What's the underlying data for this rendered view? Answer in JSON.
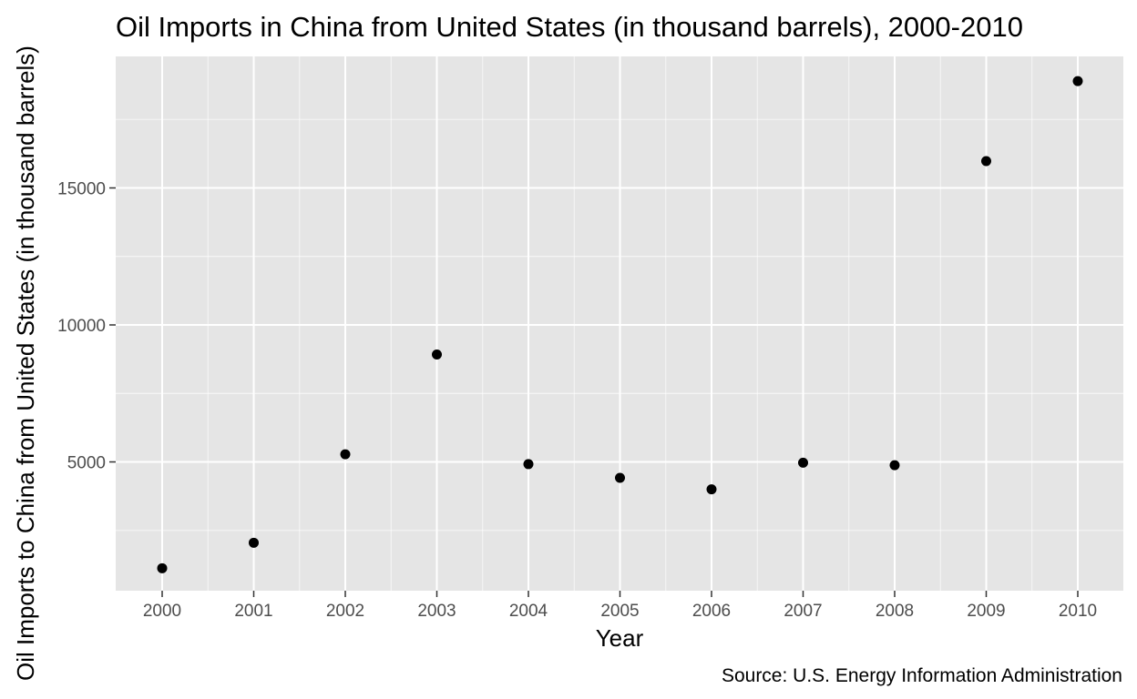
{
  "chart_data": {
    "type": "scatter",
    "title": "Oil Imports in China from United States (in thousand barrels), 2000-2010",
    "xlabel": "Year",
    "ylabel": "Oil Imports to China from United States (in thousand barrels)",
    "caption": "Source: U.S. Energy Information Administration",
    "x": [
      "2000",
      "2001",
      "2002",
      "2003",
      "2004",
      "2005",
      "2006",
      "2007",
      "2008",
      "2009",
      "2010"
    ],
    "y": [
      1120,
      2050,
      5280,
      8920,
      4920,
      4420,
      4000,
      4970,
      4880,
      15980,
      18900
    ],
    "y_ticks": [
      5000,
      10000,
      15000
    ],
    "y_tick_labels": [
      "5000",
      "10000",
      "15000"
    ],
    "ylim": [
      300,
      19800
    ],
    "grid": true,
    "point_color": "#000000",
    "panel_background": "#e5e5e5",
    "grid_color": "#ffffff"
  }
}
